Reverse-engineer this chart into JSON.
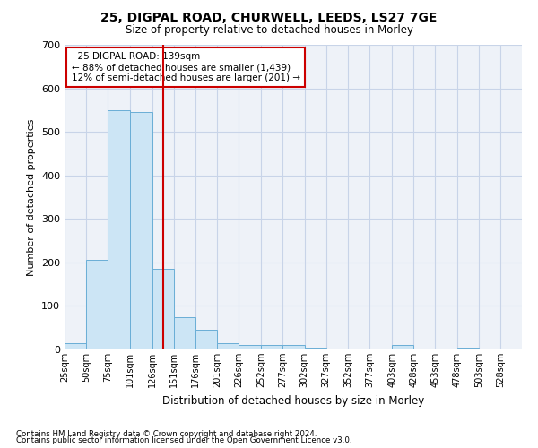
{
  "title1": "25, DIGPAL ROAD, CHURWELL, LEEDS, LS27 7GE",
  "title2": "Size of property relative to detached houses in Morley",
  "xlabel": "Distribution of detached houses by size in Morley",
  "ylabel": "Number of detached properties",
  "footnote1": "Contains HM Land Registry data © Crown copyright and database right 2024.",
  "footnote2": "Contains public sector information licensed under the Open Government Licence v3.0.",
  "annotation_line1": "  25 DIGPAL ROAD: 139sqm",
  "annotation_line2": "← 88% of detached houses are smaller (1,439)",
  "annotation_line3": "12% of semi-detached houses are larger (201) →",
  "property_size": 139,
  "bin_edges": [
    25,
    50,
    75,
    101,
    126,
    151,
    176,
    201,
    226,
    252,
    277,
    302,
    327,
    352,
    377,
    403,
    428,
    453,
    478,
    503,
    528
  ],
  "bar_values": [
    15,
    205,
    550,
    545,
    185,
    75,
    45,
    15,
    10,
    10,
    10,
    5,
    0,
    0,
    0,
    10,
    0,
    0,
    5,
    0
  ],
  "xtick_labels": [
    "25sqm",
    "50sqm",
    "75sqm",
    "101sqm",
    "126sqm",
    "151sqm",
    "176sqm",
    "201sqm",
    "226sqm",
    "252sqm",
    "277sqm",
    "302sqm",
    "327sqm",
    "352sqm",
    "377sqm",
    "403sqm",
    "428sqm",
    "453sqm",
    "478sqm",
    "503sqm",
    "528sqm"
  ],
  "bar_color": "#cce5f5",
  "bar_edgecolor": "#6aaed6",
  "redline_color": "#cc0000",
  "grid_color": "#c8d4e8",
  "bg_color": "#eef2f8",
  "ylim": [
    0,
    700
  ],
  "yticks": [
    0,
    100,
    200,
    300,
    400,
    500,
    600,
    700
  ]
}
